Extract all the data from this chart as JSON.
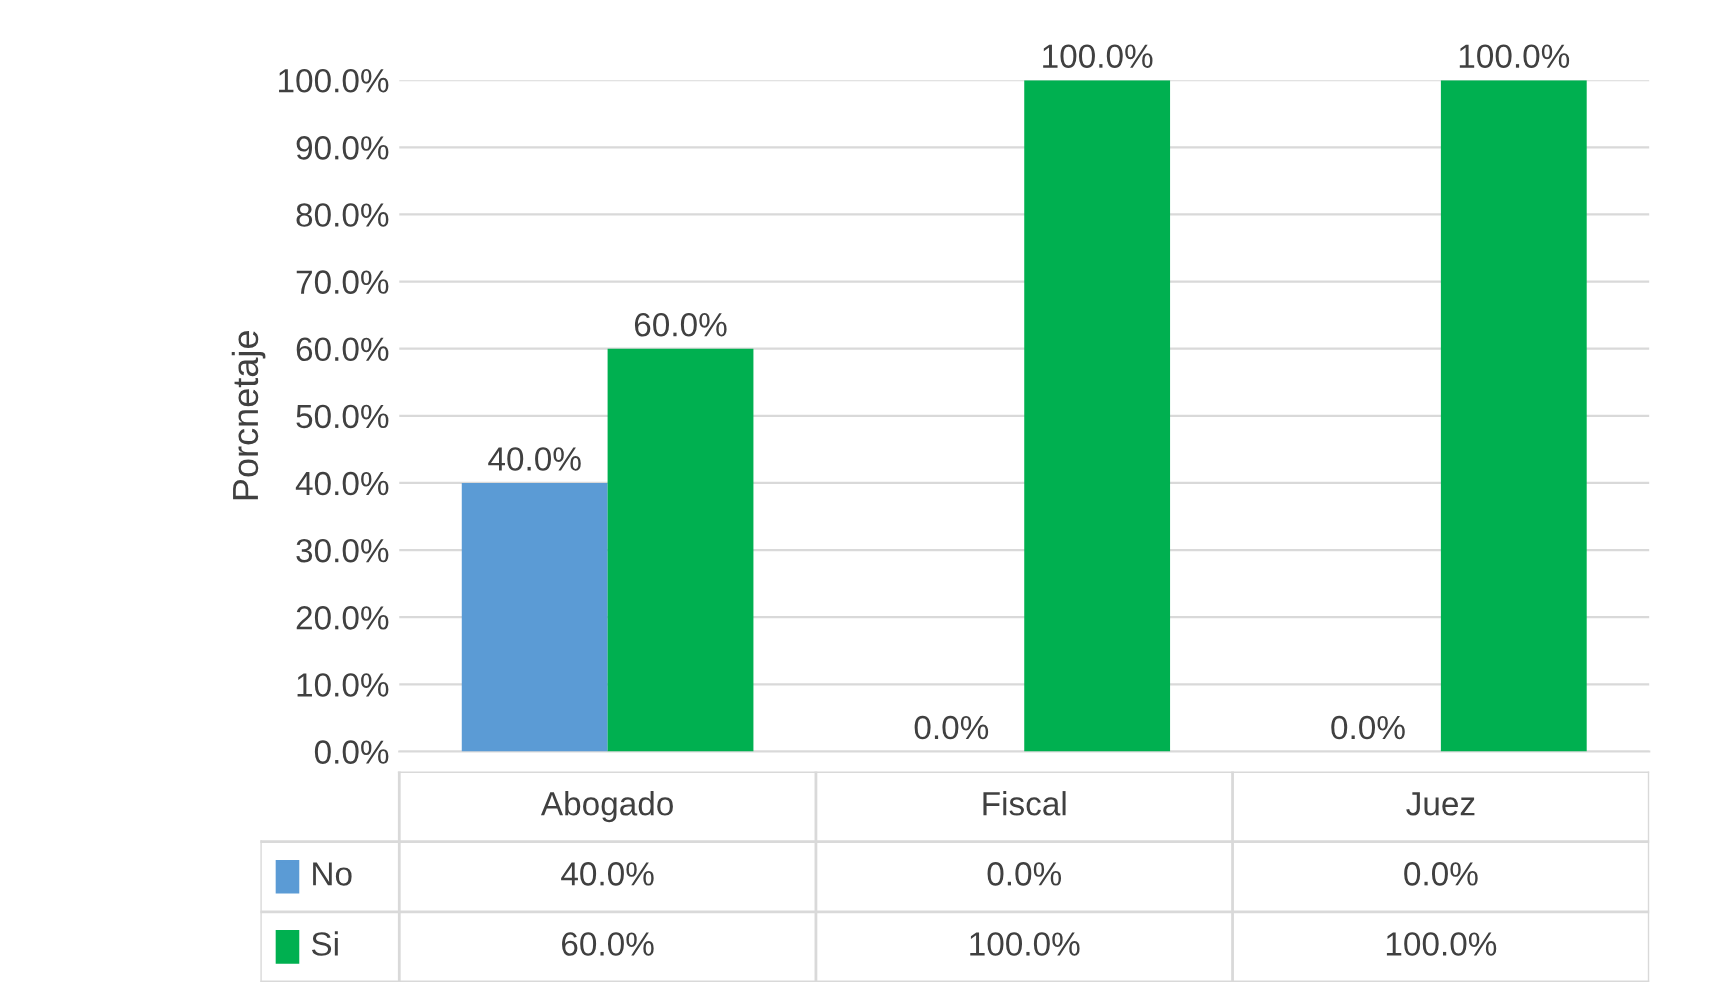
{
  "chart_data": {
    "type": "bar",
    "categories": [
      "Abogado",
      "Fiscal",
      "Juez"
    ],
    "series": [
      {
        "name": "No",
        "color": "#5b9bd5",
        "values": [
          40.0,
          0.0,
          0.0
        ],
        "value_labels": [
          "40.0%",
          "0.0%",
          "0.0%"
        ]
      },
      {
        "name": "Si",
        "color": "#00b050",
        "values": [
          60.0,
          100.0,
          100.0
        ],
        "value_labels": [
          "60.0%",
          "100.0%",
          "100.0%"
        ]
      }
    ],
    "ylabel": "Porcnetaje",
    "ylim": [
      0,
      100
    ],
    "yticks": [
      {
        "value": 0,
        "label": "0.0%"
      },
      {
        "value": 10,
        "label": "10.0%"
      },
      {
        "value": 20,
        "label": "20.0%"
      },
      {
        "value": 30,
        "label": "30.0%"
      },
      {
        "value": 40,
        "label": "40.0%"
      },
      {
        "value": 50,
        "label": "50.0%"
      },
      {
        "value": 60,
        "label": "60.0%"
      },
      {
        "value": 70,
        "label": "70.0%"
      },
      {
        "value": 80,
        "label": "80.0%"
      },
      {
        "value": 90,
        "label": "90.0%"
      },
      {
        "value": 100,
        "label": "100.0%"
      }
    ],
    "grid": "y",
    "legend": "bottom"
  }
}
